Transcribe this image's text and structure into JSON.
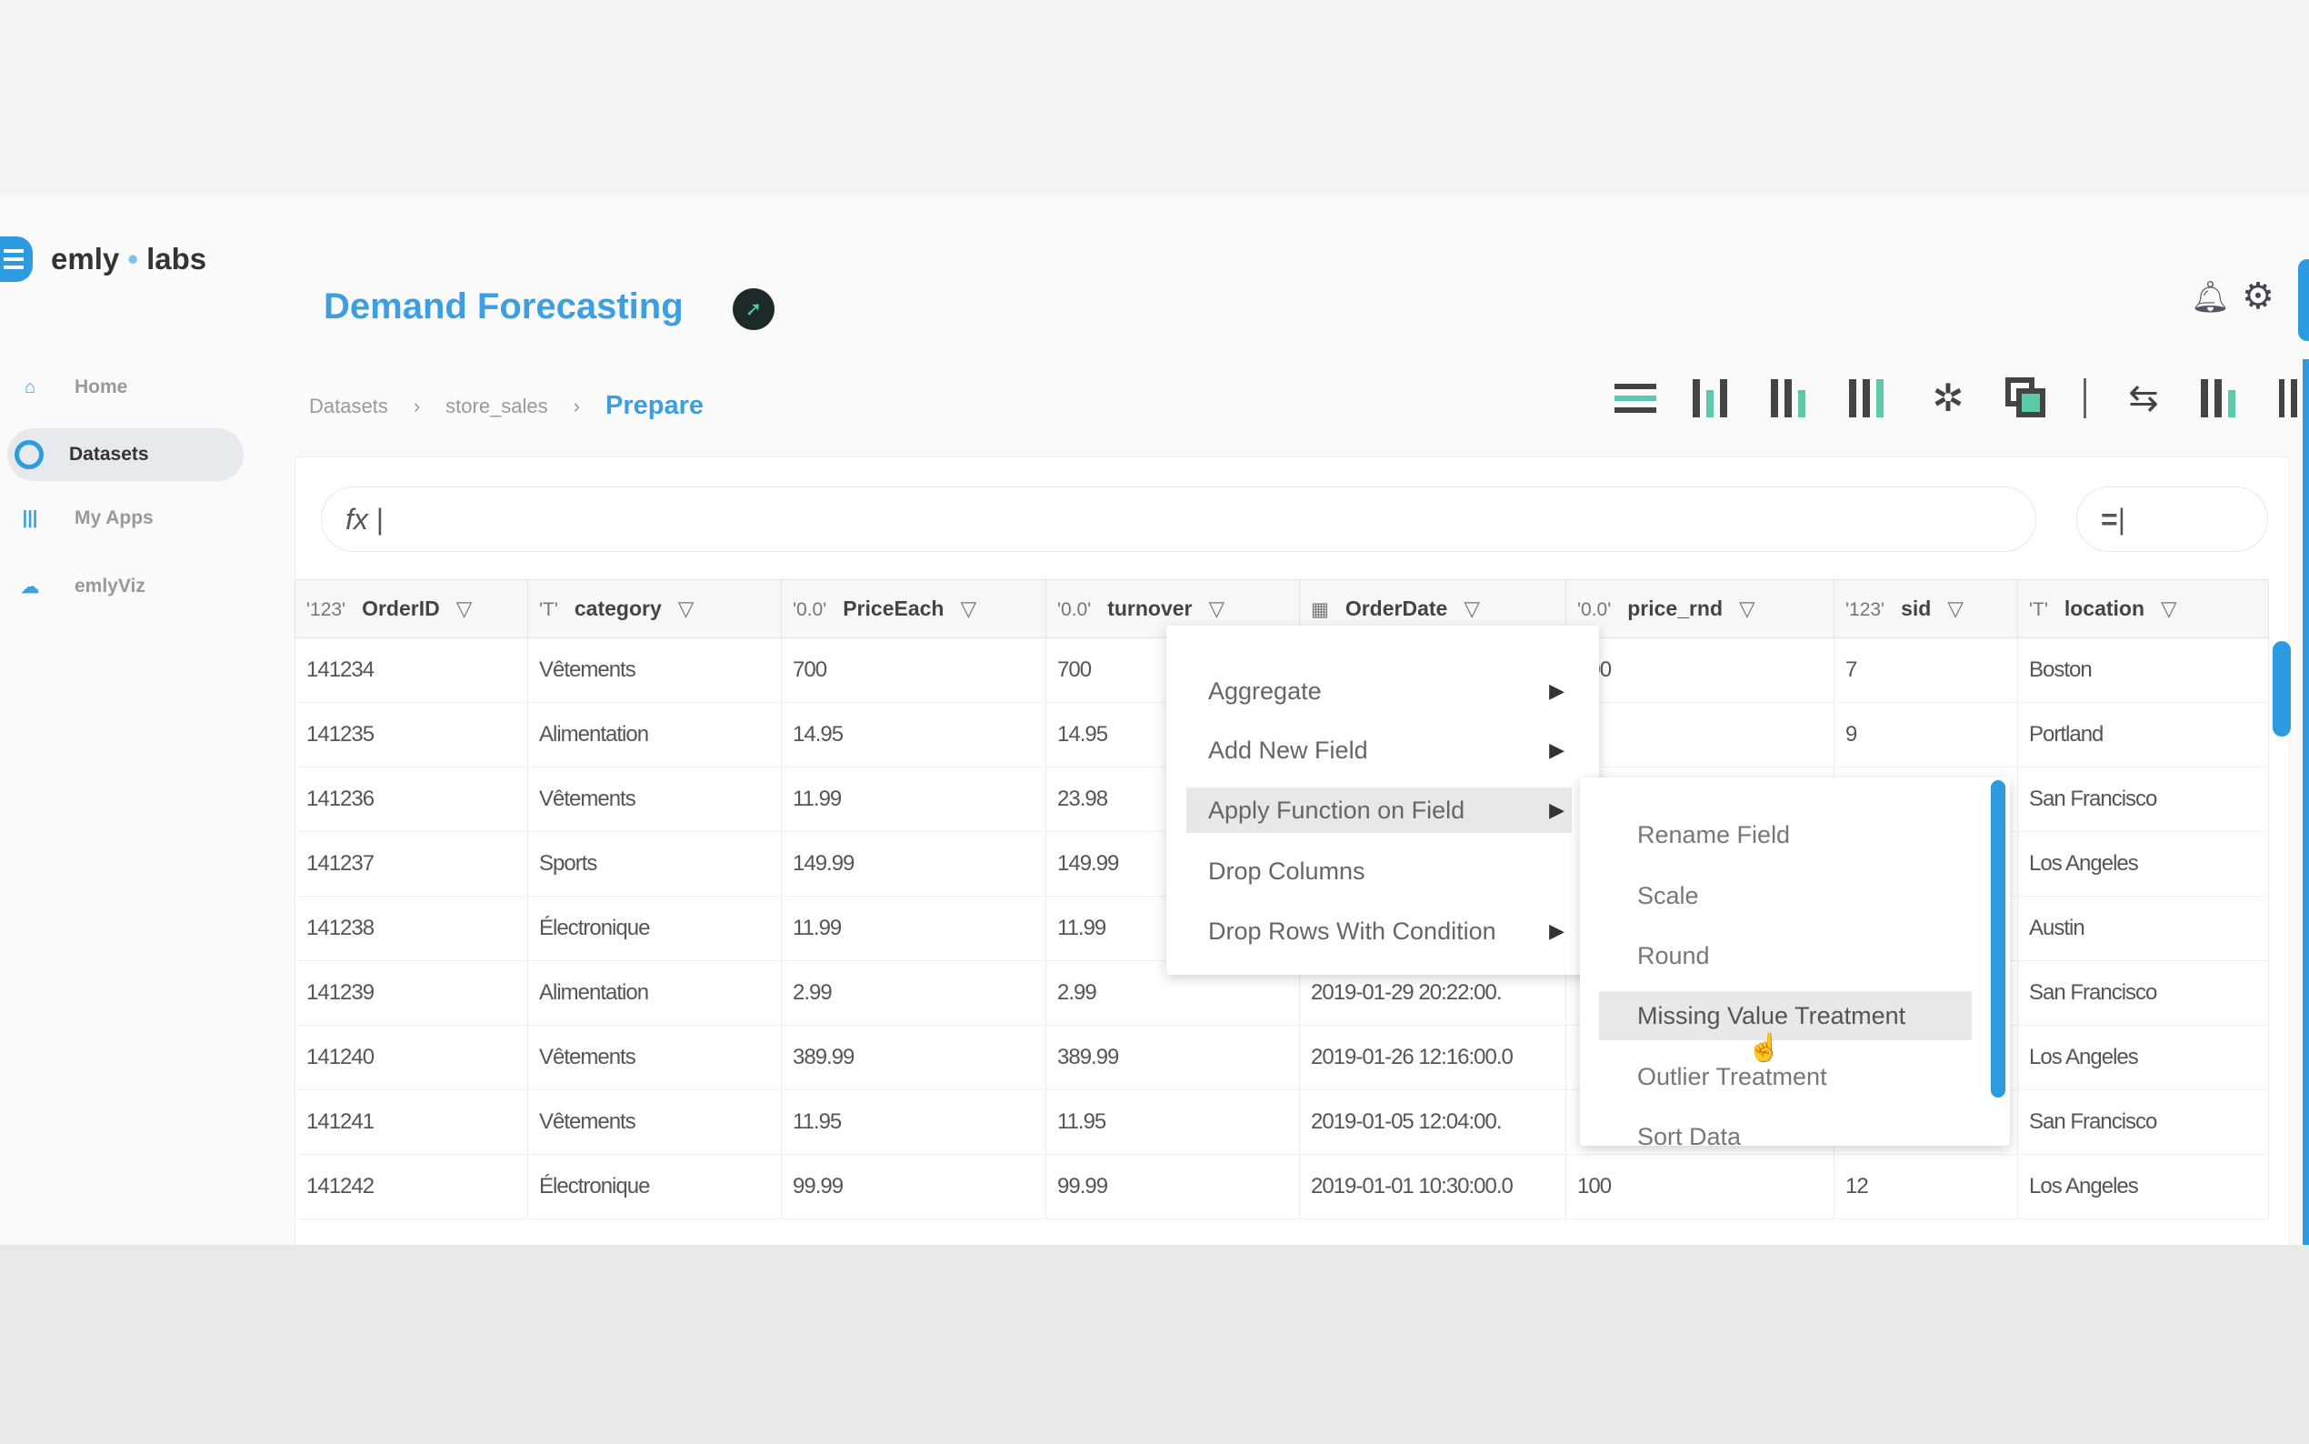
{
  "brand": {
    "name_part1": "emly",
    "name_part2": "labs"
  },
  "sidebar": {
    "items": [
      {
        "label": "Home",
        "icon": "home-icon"
      },
      {
        "label": "Datasets",
        "icon": "database-icon",
        "active": true
      },
      {
        "label": "My Apps",
        "icon": "apps-icon"
      },
      {
        "label": "emlyViz",
        "icon": "cloud-icon"
      }
    ]
  },
  "header": {
    "title": "Demand Forecasting",
    "badge_icon": "rocket-icon",
    "icons": [
      "bell-icon",
      "gear-icon"
    ]
  },
  "breadcrumb": {
    "items": [
      "Datasets",
      "store_sales"
    ],
    "current": "Prepare",
    "separator": "›"
  },
  "toolbar": {
    "icons": [
      "list-icon",
      "bar-chart-icon",
      "column-chart-icon",
      "column-chart-icon",
      "network-icon",
      "copy-icon",
      "swap-icon",
      "columns-icon",
      "grid-columns-icon"
    ]
  },
  "formula": {
    "prefix": "fx",
    "value": "|"
  },
  "filter_input": {
    "prefix": "=",
    "value": "|"
  },
  "table": {
    "columns": [
      {
        "type": "123",
        "name": "OrderID"
      },
      {
        "type": "T",
        "name": "category"
      },
      {
        "type": "0.0",
        "name": "PriceEach"
      },
      {
        "type": "0.0",
        "name": "turnover"
      },
      {
        "type": "date",
        "name": "OrderDate"
      },
      {
        "type": "0.0",
        "name": "price_rnd"
      },
      {
        "type": "123",
        "name": "sid"
      },
      {
        "type": "T",
        "name": "location"
      }
    ],
    "rows": [
      [
        "141234",
        "Vêtements",
        "700",
        "700",
        "",
        "700",
        "7",
        "Boston"
      ],
      [
        "141235",
        "Alimentation",
        "14.95",
        "14.95",
        "",
        "",
        "9",
        "Portland"
      ],
      [
        "141236",
        "Vêtements",
        "11.99",
        "23.98",
        "",
        "",
        "",
        "San Francisco"
      ],
      [
        "141237",
        "Sports",
        "149.99",
        "149.99",
        "",
        "",
        "",
        "Los Angeles"
      ],
      [
        "141238",
        "Électronique",
        "11.99",
        "11.99",
        "",
        "",
        "",
        "Austin"
      ],
      [
        "141239",
        "Alimentation",
        "2.99",
        "2.99",
        "2019-01-29 20:22:00.",
        "",
        "",
        "San Francisco"
      ],
      [
        "141240",
        "Vêtements",
        "389.99",
        "389.99",
        "2019-01-26 12:16:00.0",
        "",
        "",
        "Los Angeles"
      ],
      [
        "141241",
        "Vêtements",
        "11.95",
        "11.95",
        "2019-01-05 12:04:00.",
        "",
        "",
        "San Francisco"
      ],
      [
        "141242",
        "Électronique",
        "99.99",
        "99.99",
        "2019-01-01 10:30:00.0",
        "100",
        "12",
        "Los Angeles"
      ]
    ]
  },
  "context_menu": {
    "items": [
      {
        "label": "Aggregate",
        "submenu": true
      },
      {
        "label": "Add New Field",
        "submenu": true
      },
      {
        "label": "Apply Function on Field",
        "submenu": true,
        "highlighted": true
      },
      {
        "label": "Drop Columns",
        "submenu": false
      },
      {
        "label": "Drop Rows With Condition",
        "submenu": true
      }
    ]
  },
  "submenu": {
    "items": [
      {
        "label": "Rename Field"
      },
      {
        "label": "Scale"
      },
      {
        "label": "Round"
      },
      {
        "label": "Missing Value Treatment",
        "highlighted": true
      },
      {
        "label": "Outlier Treatment"
      },
      {
        "label": "Sort Data"
      }
    ]
  },
  "colors": {
    "accent": "#3d9ee2",
    "highlight": "#e8e8e8",
    "icon_green": "#5ccaa8"
  }
}
